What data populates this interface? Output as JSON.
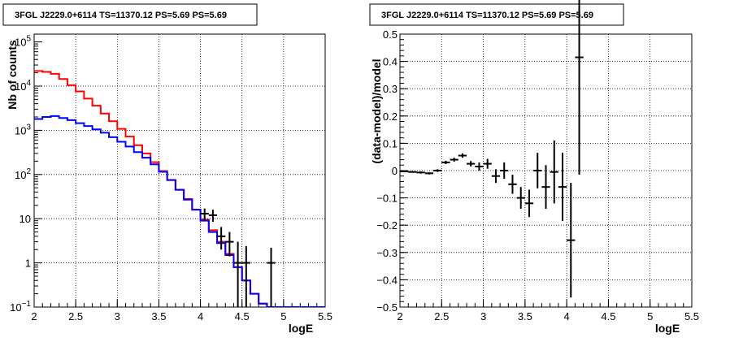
{
  "chart_data": [
    {
      "type": "line",
      "title": "3FGL J2229.0+6114 TS=11370.12 PS=5.69 PS=5.69",
      "xlabel": "logE",
      "ylabel": "Nb of counts",
      "xlim": [
        2,
        5.5
      ],
      "ylim": [
        0.1,
        150000
      ],
      "yscale": "log",
      "grid": true,
      "xticks": [
        "2",
        "2.5",
        "3",
        "3.5",
        "4",
        "4.5",
        "5",
        "5.5"
      ],
      "yticks": [
        {
          "value": 0.1,
          "label": "10",
          "exp": "−1"
        },
        {
          "value": 1,
          "label": "1",
          "exp": ""
        },
        {
          "value": 10,
          "label": "10",
          "exp": ""
        },
        {
          "value": 100,
          "label": "10",
          "exp": "2"
        },
        {
          "value": 1000,
          "label": "10",
          "exp": "3"
        },
        {
          "value": 10000,
          "label": "10",
          "exp": "4"
        },
        {
          "value": 100000,
          "label": "10",
          "exp": "5"
        }
      ],
      "bin_edges": [
        2.0,
        2.1,
        2.2,
        2.3,
        2.4,
        2.5,
        2.6,
        2.7,
        2.8,
        2.9,
        3.0,
        3.1,
        3.2,
        3.3,
        3.4,
        3.5,
        3.6,
        3.7,
        3.8,
        3.9,
        4.0,
        4.1,
        4.2,
        4.3,
        4.4,
        4.5,
        4.6,
        4.7,
        4.8,
        4.9,
        5.0,
        5.1,
        5.2,
        5.3,
        5.4,
        5.5
      ],
      "series": [
        {
          "color": "#ff0000",
          "style": "step",
          "values": [
            22000,
            21000,
            19000,
            14500,
            10500,
            7600,
            5200,
            3600,
            2400,
            1600,
            1080,
            720,
            460,
            300,
            190,
            120,
            75,
            45,
            28,
            16,
            9.5,
            5.5,
            3.0,
            1.6,
            0.8,
            0.4,
            0.2,
            0.12,
            0.1,
            0.1,
            0.1,
            0.1,
            0.1,
            0.1,
            0.1
          ]
        },
        {
          "color": "#0000ff",
          "style": "step",
          "values": [
            1800,
            2000,
            2100,
            1900,
            1700,
            1450,
            1250,
            1050,
            880,
            700,
            550,
            430,
            320,
            240,
            170,
            115,
            75,
            45,
            27,
            16,
            9,
            5,
            2.8,
            1.5,
            0.8,
            0.4,
            0.2,
            0.12,
            0.1,
            0.1,
            0.1,
            0.1,
            0.1,
            0.1,
            0.1
          ]
        }
      ],
      "data_points": [
        {
          "x": 4.05,
          "y": 13,
          "ylo": 9,
          "yhi": 17
        },
        {
          "x": 4.15,
          "y": 12,
          "ylo": 8.5,
          "yhi": 16
        },
        {
          "x": 4.25,
          "y": 4,
          "ylo": 2,
          "yhi": 6.5
        },
        {
          "x": 4.35,
          "y": 3,
          "ylo": 1.4,
          "yhi": 5
        },
        {
          "x": 4.45,
          "y": 1,
          "ylo": 0.1,
          "yhi": 3
        },
        {
          "x": 4.55,
          "y": 1,
          "ylo": 0.1,
          "yhi": 2.4
        },
        {
          "x": 4.85,
          "y": 1,
          "ylo": 0.1,
          "yhi": 2.2
        }
      ]
    },
    {
      "type": "scatter",
      "title": "3FGL J2229.0+6114 TS=11370.12 PS=5.69 PS=5.69",
      "xlabel": "logE",
      "ylabel": "(data-model)/model",
      "xlim": [
        2,
        5.5
      ],
      "ylim": [
        -0.5,
        0.5
      ],
      "grid": true,
      "xticks": [
        "2",
        "2.5",
        "3",
        "3.5",
        "4",
        "4.5",
        "5",
        "5.5"
      ],
      "yticks": [
        "−0.5",
        "−0.4",
        "−0.3",
        "−0.2",
        "−0.1",
        "0",
        "0.1",
        "0.2",
        "0.3",
        "0.4",
        "0.5"
      ],
      "points": [
        {
          "x": 2.05,
          "y": -0.003,
          "err": 0.003
        },
        {
          "x": 2.15,
          "y": -0.005,
          "err": 0.003
        },
        {
          "x": 2.25,
          "y": -0.007,
          "err": 0.004
        },
        {
          "x": 2.35,
          "y": -0.01,
          "err": 0.004
        },
        {
          "x": 2.45,
          "y": 0.0,
          "err": 0.005
        },
        {
          "x": 2.55,
          "y": 0.03,
          "err": 0.006
        },
        {
          "x": 2.65,
          "y": 0.04,
          "err": 0.007
        },
        {
          "x": 2.75,
          "y": 0.055,
          "err": 0.008
        },
        {
          "x": 2.85,
          "y": 0.025,
          "err": 0.01
        },
        {
          "x": 2.95,
          "y": 0.015,
          "err": 0.015
        },
        {
          "x": 3.05,
          "y": 0.025,
          "err": 0.018
        },
        {
          "x": 3.15,
          "y": -0.02,
          "err": 0.025
        },
        {
          "x": 3.25,
          "y": 0.0,
          "err": 0.03
        },
        {
          "x": 3.35,
          "y": -0.05,
          "err": 0.035
        },
        {
          "x": 3.45,
          "y": -0.1,
          "err": 0.04
        },
        {
          "x": 3.55,
          "y": -0.12,
          "err": 0.05
        },
        {
          "x": 3.65,
          "y": 0.0,
          "err": 0.065
        },
        {
          "x": 3.75,
          "y": -0.06,
          "err": 0.08
        },
        {
          "x": 3.85,
          "y": -0.005,
          "err": 0.115
        },
        {
          "x": 3.95,
          "y": -0.06,
          "err": 0.125
        },
        {
          "x": 4.05,
          "y": -0.255,
          "err": 0.21
        },
        {
          "x": 4.15,
          "y": 0.415,
          "err": 0.43
        }
      ]
    }
  ]
}
